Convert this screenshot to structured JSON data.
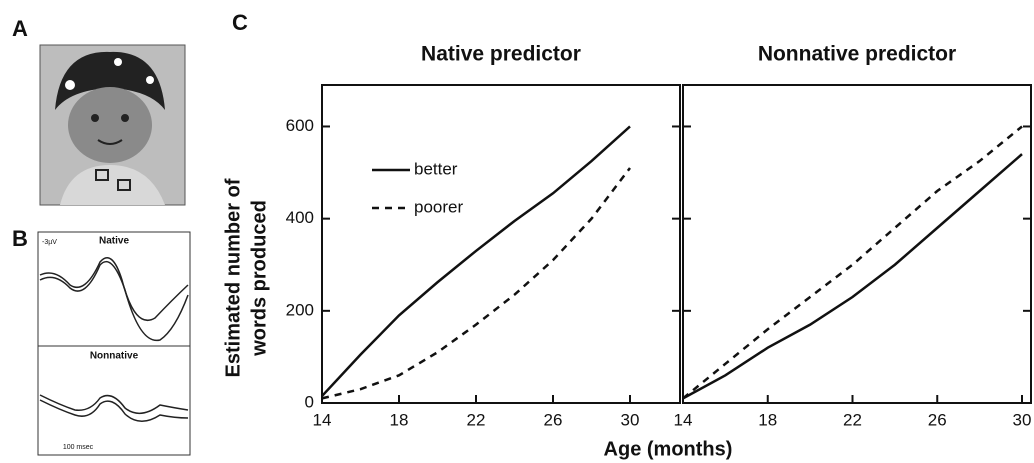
{
  "panels": {
    "a": {
      "label": "A"
    },
    "b": {
      "label": "B",
      "native": "Native",
      "nonnative": "Nonnative",
      "scale_voltage": "-3µV",
      "scale_time": "100 msec"
    },
    "c": {
      "label": "C",
      "x_label": "Age (months)",
      "y_label": [
        "Estimated number of",
        "words produced"
      ]
    }
  },
  "chart_data": [
    {
      "type": "line",
      "title": "Native predictor",
      "x": [
        14,
        16,
        18,
        20,
        22,
        24,
        26,
        28,
        30
      ],
      "series": [
        {
          "name": "better",
          "color": "#111111",
          "dash": "solid",
          "values": [
            15,
            105,
            190,
            262,
            330,
            395,
            455,
            525,
            600
          ]
        },
        {
          "name": "poorer",
          "color": "#111111",
          "dash": "dashed",
          "values": [
            10,
            30,
            60,
            110,
            170,
            235,
            310,
            400,
            510
          ]
        }
      ],
      "xlim": [
        14,
        30
      ],
      "xticks": [
        14,
        18,
        22,
        26,
        30
      ],
      "ylim": [
        0,
        690
      ],
      "yticks": [
        0,
        200,
        400,
        600
      ],
      "legend": "upper left"
    },
    {
      "type": "line",
      "title": "Nonnative predictor",
      "x": [
        14,
        16,
        18,
        20,
        22,
        24,
        26,
        28,
        30
      ],
      "series": [
        {
          "name": "better",
          "color": "#111111",
          "dash": "solid",
          "values": [
            10,
            60,
            120,
            170,
            230,
            300,
            380,
            460,
            540
          ]
        },
        {
          "name": "poorer",
          "color": "#111111",
          "dash": "dashed",
          "values": [
            10,
            85,
            160,
            230,
            300,
            380,
            460,
            525,
            600
          ]
        }
      ],
      "xlim": [
        14,
        30
      ],
      "xticks": [
        14,
        18,
        22,
        26,
        30
      ],
      "ylim": [
        0,
        690
      ],
      "yticks": [
        0,
        200,
        400,
        600
      ]
    }
  ]
}
